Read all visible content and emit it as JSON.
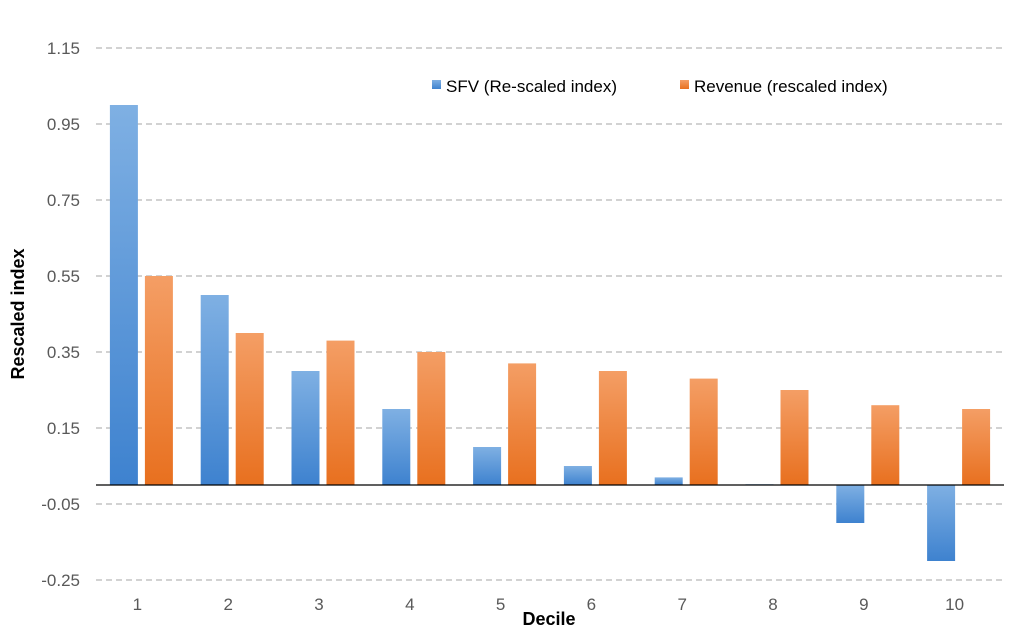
{
  "chart_data": {
    "type": "bar",
    "title": "",
    "xlabel": "Decile",
    "ylabel": "Rescaled index",
    "categories": [
      "1",
      "2",
      "3",
      "4",
      "5",
      "6",
      "7",
      "8",
      "9",
      "10"
    ],
    "series": [
      {
        "name": "SFV (Re-scaled index)",
        "color": "#4e8fd6",
        "values": [
          1.0,
          0.5,
          0.3,
          0.2,
          0.1,
          0.05,
          0.02,
          0.002,
          -0.1,
          -0.2
        ]
      },
      {
        "name": "Revenue (rescaled index)",
        "color": "#ed7d31",
        "values": [
          0.55,
          0.4,
          0.38,
          0.35,
          0.32,
          0.3,
          0.28,
          0.25,
          0.21,
          0.2
        ]
      }
    ],
    "ylim": [
      -0.25,
      1.15
    ],
    "yticks": [
      1.15,
      0.95,
      0.75,
      0.55,
      0.35,
      0.15,
      -0.05,
      -0.25
    ],
    "ytick_labels": [
      "1.15",
      "0.95",
      "0.75",
      "0.55",
      "0.35",
      "0.15",
      "-0.05",
      "-0.25"
    ],
    "grid": "horizontal-dashed",
    "legend_position": "top-right"
  }
}
